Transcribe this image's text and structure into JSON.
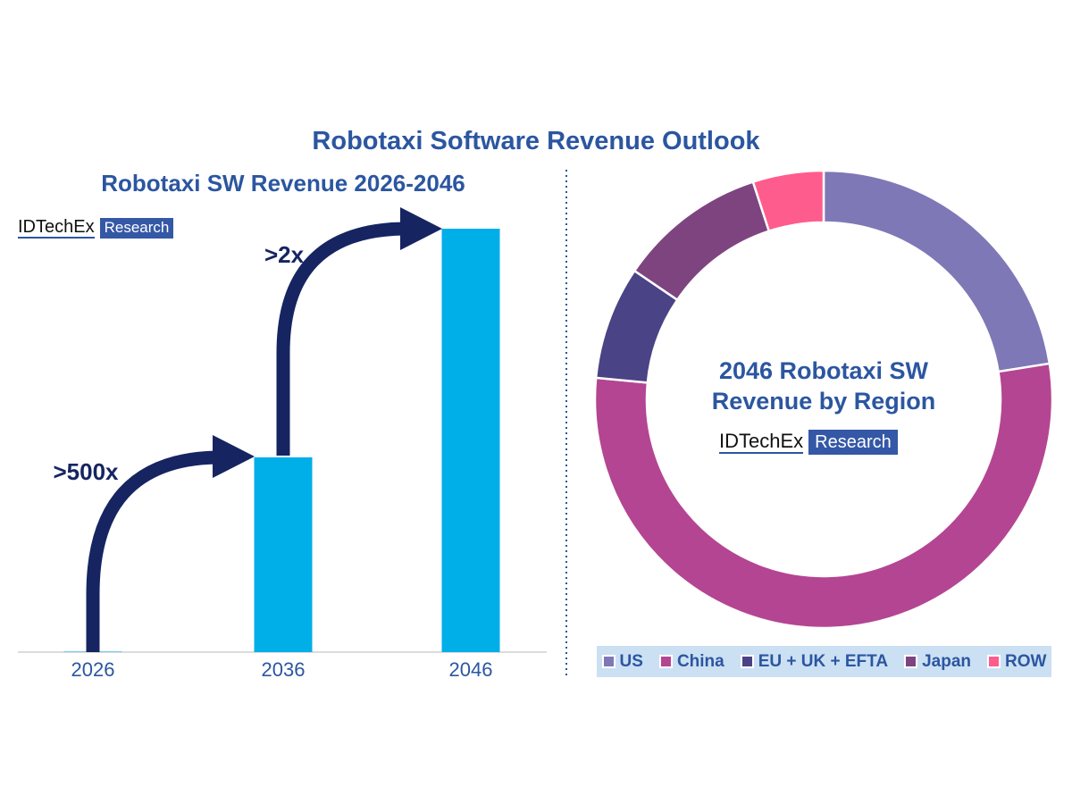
{
  "title": "Robotaxi Software Revenue Outlook",
  "logo": {
    "word": "IDTechEx",
    "box": "Research"
  },
  "chart_data": [
    {
      "type": "bar",
      "title": "Robotaxi SW Revenue 2026-2046",
      "categories": [
        "2026",
        "2036",
        "2046"
      ],
      "values": [
        0.1,
        46,
        100
      ],
      "bar_color": "#00aee8",
      "arrow_color": "#162561",
      "annotations": [
        ">500x",
        ">2x"
      ],
      "grid": false
    },
    {
      "type": "pie",
      "donut": true,
      "title_lines": [
        "2046 Robotaxi SW",
        "Revenue by Region"
      ],
      "categories": [
        "US",
        "China",
        "EU + UK + EFTA",
        "Japan",
        "ROW"
      ],
      "values": [
        22.5,
        54,
        8,
        10.5,
        5
      ],
      "colors": [
        "#7f78b6",
        "#b44592",
        "#4a4385",
        "#7e4480",
        "#ff5c8e"
      ],
      "legend_position": "bottom"
    }
  ]
}
